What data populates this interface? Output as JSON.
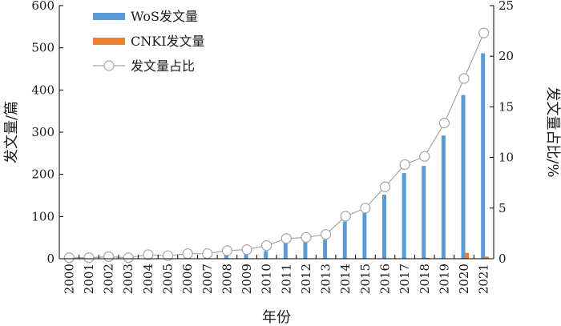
{
  "chart_data": {
    "type": "bar",
    "categories": [
      "2000",
      "2001",
      "2002",
      "2003",
      "2004",
      "2005",
      "2006",
      "2007",
      "2008",
      "2009",
      "2010",
      "2011",
      "2012",
      "2013",
      "2014",
      "2015",
      "2016",
      "2017",
      "2018",
      "2019",
      "2020",
      "2021"
    ],
    "series": [
      {
        "name": "WoS发文量",
        "kind": "bar",
        "axis": "left",
        "color": "#5b9bd5",
        "values": [
          1,
          1,
          2,
          2,
          3,
          3,
          4,
          5,
          10,
          12,
          18,
          38,
          42,
          45,
          88,
          108,
          152,
          203,
          220,
          292,
          388,
          487
        ]
      },
      {
        "name": "CNKI发文量",
        "kind": "bar",
        "axis": "left",
        "color": "#ed7d31",
        "values": [
          0,
          0,
          0,
          0,
          0,
          0,
          0,
          0,
          0,
          0,
          0,
          0,
          0,
          0,
          0,
          0,
          0,
          0,
          2,
          0,
          14,
          5
        ]
      },
      {
        "name": "发文量占比",
        "kind": "line",
        "axis": "right",
        "color": "#a6a6a6",
        "values": [
          0.1,
          0.1,
          0.2,
          0.1,
          0.4,
          0.3,
          0.5,
          0.5,
          0.8,
          0.9,
          1.3,
          2.0,
          2.1,
          2.4,
          4.2,
          5.0,
          7.1,
          9.3,
          10.1,
          13.4,
          17.8,
          22.3
        ]
      }
    ],
    "xlabel": "年份",
    "ylabel": "发文量/篇",
    "y2label": "发文量占比/%",
    "ylim": [
      0,
      600
    ],
    "y2lim": [
      0,
      25
    ],
    "yticks": [
      0,
      100,
      200,
      300,
      400,
      500,
      600
    ],
    "y2ticks": [
      0,
      5,
      10,
      15,
      20,
      25
    ],
    "grid": false,
    "legend_position": "top-left"
  }
}
